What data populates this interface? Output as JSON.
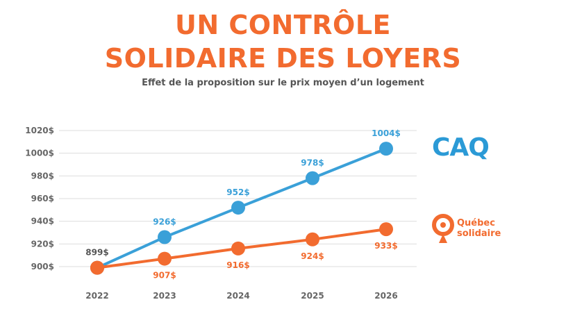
{
  "header": {
    "title_line1": "UN CONTRÔLE",
    "title_line2": "SOLIDAIRE DES LOYERS",
    "subtitle": "Effet de la proposition sur le prix moyen d’un logement"
  },
  "logos": {
    "caq": "CAQ",
    "qs_line1": "Québec",
    "qs_line2": "solidaire"
  },
  "colors": {
    "caq": "#3aa0d8",
    "qs": "#f26b2f",
    "title": "#f26b2f",
    "grid": "#dddddd"
  },
  "chart_data": {
    "type": "line",
    "title": "UN CONTRÔLE SOLIDAIRE DES LOYERS",
    "subtitle": "Effet de la proposition sur le prix moyen d’un logement",
    "categories": [
      "2022",
      "2023",
      "2024",
      "2025",
      "2026"
    ],
    "y_ticks": [
      "900$",
      "920$",
      "940$",
      "960$",
      "980$",
      "1000$",
      "1020$"
    ],
    "y_tick_values": [
      900,
      920,
      940,
      960,
      980,
      1000,
      1020
    ],
    "ylim": [
      900,
      1020
    ],
    "grid": true,
    "series": [
      {
        "name": "CAQ",
        "color": "#3aa0d8",
        "values": [
          899,
          926,
          952,
          978,
          1004
        ],
        "labels": [
          "",
          "926$",
          "952$",
          "978$",
          "1004$"
        ]
      },
      {
        "name": "Québec solidaire",
        "color": "#f26b2f",
        "values": [
          899,
          907,
          916,
          924,
          933
        ],
        "labels": [
          "",
          "907$",
          "916$",
          "924$",
          "933$"
        ]
      }
    ],
    "shared_start_label": "899$"
  }
}
